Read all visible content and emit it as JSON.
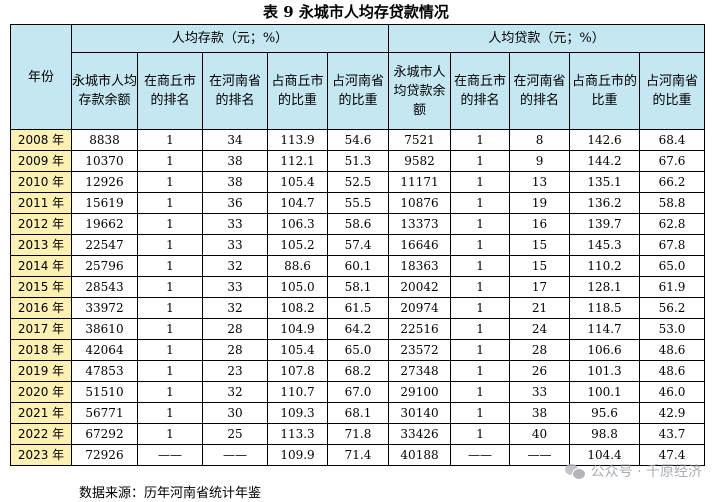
{
  "title": "表 9  永城市人均存贷款情况",
  "headers": {
    "year": "年份",
    "deposit_group": "人均存款（元；%）",
    "loan_group": "人均贷款（元；%）",
    "deposit_cols": [
      "永城市人均存款余额",
      "在商丘市的排名",
      "在河南省的排名",
      "占商丘市的比重",
      "占河南省的比重"
    ],
    "loan_cols": [
      "永城市人均贷款余额",
      "在商丘市的排名",
      "在河南省的排名",
      "占商丘市的比重",
      "占河南省的比重"
    ]
  },
  "rows": [
    {
      "year": "2008 年",
      "d_amount": "8838",
      "d_rank_sq": "1",
      "d_rank_hn": "34",
      "d_share_sq": "113.9",
      "d_share_hn": "54.6",
      "l_amount": "7521",
      "l_rank_sq": "1",
      "l_rank_hn": "8",
      "l_share_sq": "142.6",
      "l_share_hn": "68.4"
    },
    {
      "year": "2009 年",
      "d_amount": "10370",
      "d_rank_sq": "1",
      "d_rank_hn": "38",
      "d_share_sq": "112.1",
      "d_share_hn": "51.3",
      "l_amount": "9582",
      "l_rank_sq": "1",
      "l_rank_hn": "9",
      "l_share_sq": "144.2",
      "l_share_hn": "67.6"
    },
    {
      "year": "2010 年",
      "d_amount": "12926",
      "d_rank_sq": "1",
      "d_rank_hn": "38",
      "d_share_sq": "105.4",
      "d_share_hn": "52.5",
      "l_amount": "11171",
      "l_rank_sq": "1",
      "l_rank_hn": "13",
      "l_share_sq": "135.1",
      "l_share_hn": "66.2"
    },
    {
      "year": "2011 年",
      "d_amount": "15619",
      "d_rank_sq": "1",
      "d_rank_hn": "36",
      "d_share_sq": "104.7",
      "d_share_hn": "55.5",
      "l_amount": "10876",
      "l_rank_sq": "1",
      "l_rank_hn": "19",
      "l_share_sq": "136.2",
      "l_share_hn": "58.8"
    },
    {
      "year": "2012 年",
      "d_amount": "19662",
      "d_rank_sq": "1",
      "d_rank_hn": "33",
      "d_share_sq": "106.3",
      "d_share_hn": "58.6",
      "l_amount": "13373",
      "l_rank_sq": "1",
      "l_rank_hn": "16",
      "l_share_sq": "139.7",
      "l_share_hn": "62.8"
    },
    {
      "year": "2013 年",
      "d_amount": "22547",
      "d_rank_sq": "1",
      "d_rank_hn": "33",
      "d_share_sq": "105.2",
      "d_share_hn": "57.4",
      "l_amount": "16646",
      "l_rank_sq": "1",
      "l_rank_hn": "15",
      "l_share_sq": "145.3",
      "l_share_hn": "67.8"
    },
    {
      "year": "2014 年",
      "d_amount": "25796",
      "d_rank_sq": "1",
      "d_rank_hn": "32",
      "d_share_sq": "88.6",
      "d_share_hn": "60.1",
      "l_amount": "18363",
      "l_rank_sq": "1",
      "l_rank_hn": "15",
      "l_share_sq": "110.2",
      "l_share_hn": "65.0"
    },
    {
      "year": "2015 年",
      "d_amount": "28543",
      "d_rank_sq": "1",
      "d_rank_hn": "33",
      "d_share_sq": "105.0",
      "d_share_hn": "58.1",
      "l_amount": "20042",
      "l_rank_sq": "1",
      "l_rank_hn": "17",
      "l_share_sq": "128.1",
      "l_share_hn": "61.9"
    },
    {
      "year": "2016 年",
      "d_amount": "33972",
      "d_rank_sq": "1",
      "d_rank_hn": "32",
      "d_share_sq": "108.2",
      "d_share_hn": "61.5",
      "l_amount": "20974",
      "l_rank_sq": "1",
      "l_rank_hn": "21",
      "l_share_sq": "118.5",
      "l_share_hn": "56.2"
    },
    {
      "year": "2017 年",
      "d_amount": "38610",
      "d_rank_sq": "1",
      "d_rank_hn": "28",
      "d_share_sq": "104.9",
      "d_share_hn": "64.2",
      "l_amount": "22516",
      "l_rank_sq": "1",
      "l_rank_hn": "24",
      "l_share_sq": "114.7",
      "l_share_hn": "53.0"
    },
    {
      "year": "2018 年",
      "d_amount": "42064",
      "d_rank_sq": "1",
      "d_rank_hn": "28",
      "d_share_sq": "105.4",
      "d_share_hn": "65.0",
      "l_amount": "23572",
      "l_rank_sq": "1",
      "l_rank_hn": "28",
      "l_share_sq": "106.6",
      "l_share_hn": "48.6"
    },
    {
      "year": "2019 年",
      "d_amount": "47853",
      "d_rank_sq": "1",
      "d_rank_hn": "23",
      "d_share_sq": "107.8",
      "d_share_hn": "68.2",
      "l_amount": "27348",
      "l_rank_sq": "1",
      "l_rank_hn": "26",
      "l_share_sq": "101.3",
      "l_share_hn": "48.6"
    },
    {
      "year": "2020 年",
      "d_amount": "51510",
      "d_rank_sq": "1",
      "d_rank_hn": "32",
      "d_share_sq": "110.7",
      "d_share_hn": "67.0",
      "l_amount": "29100",
      "l_rank_sq": "1",
      "l_rank_hn": "33",
      "l_share_sq": "100.1",
      "l_share_hn": "46.0"
    },
    {
      "year": "2021 年",
      "d_amount": "56771",
      "d_rank_sq": "1",
      "d_rank_hn": "30",
      "d_share_sq": "109.3",
      "d_share_hn": "68.1",
      "l_amount": "30140",
      "l_rank_sq": "1",
      "l_rank_hn": "38",
      "l_share_sq": "95.6",
      "l_share_hn": "42.9"
    },
    {
      "year": "2022 年",
      "d_amount": "67292",
      "d_rank_sq": "1",
      "d_rank_hn": "25",
      "d_share_sq": "113.3",
      "d_share_hn": "71.8",
      "l_amount": "33426",
      "l_rank_sq": "1",
      "l_rank_hn": "40",
      "l_share_sq": "98.8",
      "l_share_hn": "43.7"
    },
    {
      "year": "2023 年",
      "d_amount": "72926",
      "d_rank_sq": "——",
      "d_rank_hn": "——",
      "d_share_sq": "109.9",
      "d_share_hn": "71.4",
      "l_amount": "40188",
      "l_rank_sq": "——",
      "l_rank_hn": "——",
      "l_share_sq": "104.4",
      "l_share_hn": "47.4"
    }
  ],
  "source": "数据来源：历年河南省统计年鉴",
  "watermark": {
    "text": "公众号 · 千原经济",
    "icon": "wechat-icon"
  },
  "colors": {
    "header_bg": "#c5e7f2",
    "year_bg": "#fdf0b3"
  }
}
